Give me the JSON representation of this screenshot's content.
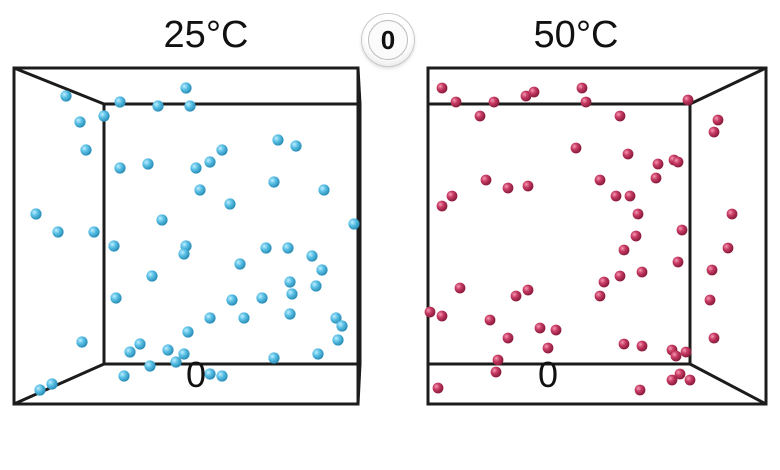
{
  "left_panel": {
    "temperature": "25°C",
    "molecule_count_label": "0",
    "particle_color": "#5cc1e6"
  },
  "right_panel": {
    "temperature": "50°C",
    "molecule_count_label": "0",
    "particle_color": "#c83a63"
  },
  "timer": {
    "value": "0"
  }
}
